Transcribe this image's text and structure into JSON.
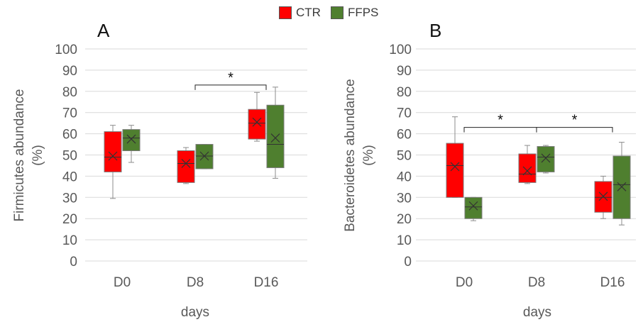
{
  "legend": [
    {
      "label": "CTR",
      "color": "#ff0000"
    },
    {
      "label": "FFPS",
      "color": "#4f7f2f"
    }
  ],
  "chart_data": [
    {
      "type": "box",
      "panel": "A",
      "ylabel_line1": "Firmicutes abundance",
      "ylabel_line2": "(%)",
      "xlabel": "days",
      "ylim": [
        0,
        100
      ],
      "yticks": [
        0,
        10,
        20,
        30,
        40,
        50,
        60,
        70,
        80,
        90,
        100
      ],
      "grid": true,
      "categories": [
        "D0",
        "D8",
        "D16"
      ],
      "series": [
        {
          "name": "CTR",
          "color": "#ff0000",
          "boxes": [
            {
              "min": 29.5,
              "q1": 42,
              "median": 49,
              "q3": 61,
              "max": 64,
              "mean": 49.5
            },
            {
              "min": 36.5,
              "q1": 37,
              "median": 46,
              "q3": 52,
              "max": 53.5,
              "mean": 46
            },
            {
              "min": 56.5,
              "q1": 57.5,
              "median": 65,
              "q3": 71.5,
              "max": 79.5,
              "mean": 65.5
            }
          ]
        },
        {
          "name": "FFPS",
          "color": "#4f7f2f",
          "boxes": [
            {
              "min": 46.5,
              "q1": 52,
              "median": 58,
              "q3": 62,
              "max": 64,
              "mean": 57.5
            },
            {
              "min": 43.5,
              "q1": 43.5,
              "median": 49.5,
              "q3": 55,
              "max": 55,
              "mean": 49.5
            },
            {
              "min": 39,
              "q1": 44,
              "median": 55,
              "q3": 73.5,
              "max": 82,
              "mean": 58
            }
          ]
        }
      ],
      "significance": [
        {
          "from": 1,
          "to": 2,
          "y": 83,
          "label": "*"
        }
      ]
    },
    {
      "type": "box",
      "panel": "B",
      "ylabel_line1": "Bacteroidetes abundance",
      "ylabel_line2": "(%)",
      "xlabel": "days",
      "ylim": [
        0,
        100
      ],
      "yticks": [
        0,
        10,
        20,
        30,
        40,
        50,
        60,
        70,
        80,
        90,
        100
      ],
      "grid": true,
      "categories": [
        "D0",
        "D8",
        "D16"
      ],
      "series": [
        {
          "name": "CTR",
          "color": "#ff0000",
          "boxes": [
            {
              "min": 30,
              "q1": 30,
              "median": 45,
              "q3": 55.5,
              "max": 68,
              "mean": 44.5
            },
            {
              "min": 36.5,
              "q1": 37,
              "median": 41,
              "q3": 50.5,
              "max": 54.5,
              "mean": 42.5
            },
            {
              "min": 20,
              "q1": 23,
              "median": 30,
              "q3": 37.5,
              "max": 40,
              "mean": 30.5
            }
          ]
        },
        {
          "name": "FFPS",
          "color": "#4f7f2f",
          "boxes": [
            {
              "min": 19,
              "q1": 20,
              "median": 25.5,
              "q3": 30,
              "max": 30,
              "mean": 26
            },
            {
              "min": 41.5,
              "q1": 42,
              "median": 49,
              "q3": 54,
              "max": 54.5,
              "mean": 48.5
            },
            {
              "min": 17,
              "q1": 20,
              "median": 36,
              "q3": 49.5,
              "max": 56,
              "mean": 35
            }
          ]
        }
      ],
      "significance": [
        {
          "from": 0,
          "to": 1,
          "y": 63,
          "label": "*"
        },
        {
          "from": 1,
          "to": 2,
          "y": 63,
          "label": "*"
        }
      ]
    }
  ]
}
